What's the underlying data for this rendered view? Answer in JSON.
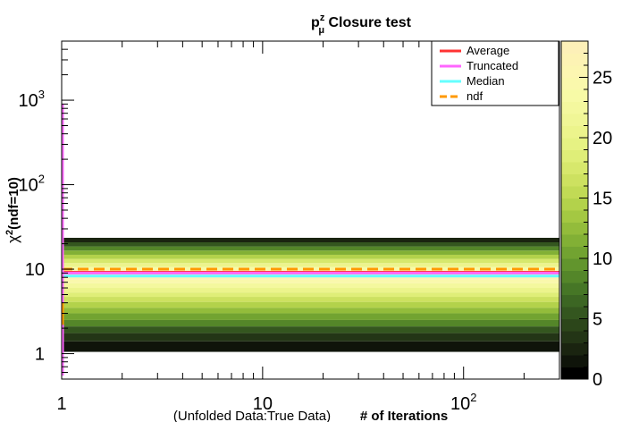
{
  "chart_data": {
    "type": "heatmap",
    "title": "p",
    "title_superscript": "z",
    "title_subscript": "μ",
    "title_rest": " Closure test",
    "xlabel_prefix": "(Unfolded Data:True Data)",
    "xlabel": "# of Iterations",
    "ylabel_symbol": "χ",
    "ylabel_superscript": "2",
    "ylabel_rest": "(ndf=10)",
    "x_scale": "log",
    "y_scale": "log",
    "xlim": [
      1,
      300
    ],
    "ylim": [
      0.5,
      5000
    ],
    "x_ticks": [
      {
        "value": 1,
        "label": "1"
      },
      {
        "value": 10,
        "label": "10"
      },
      {
        "value": 100,
        "label": "10",
        "sup": "2"
      }
    ],
    "y_ticks": [
      {
        "value": 1,
        "label": "1"
      },
      {
        "value": 10,
        "label": "10"
      },
      {
        "value": 100,
        "label": "10",
        "sup": "2"
      },
      {
        "value": 1000,
        "label": "10",
        "sup": "3"
      }
    ],
    "colorbar": {
      "range": [
        0,
        28
      ],
      "ticks": [
        "0",
        "5",
        "10",
        "15",
        "20",
        "25"
      ],
      "tick_values": [
        0,
        5,
        10,
        15,
        20,
        25
      ],
      "palette": [
        "#000000",
        "#0f140a",
        "#1a2410",
        "#233516",
        "#2c461a",
        "#34561f",
        "#3c6623",
        "#467626",
        "#548629",
        "#62952d",
        "#72a331",
        "#82b035",
        "#93bc3b",
        "#a4c842",
        "#b3d24b",
        "#c1da55",
        "#cde160",
        "#d7e86c",
        "#dfee78",
        "#e6f283",
        "#ecf48c",
        "#f0f696",
        "#f4f89e",
        "#f7faa6",
        "#faf8ac",
        "#fcf6b1",
        "#fdf3b4",
        "#fdf0b8"
      ]
    },
    "heatmap_rows": [
      {
        "y0": 1.05,
        "y1": 1.4,
        "value": 1
      },
      {
        "y0": 1.4,
        "y1": 1.75,
        "value": 3
      },
      {
        "y0": 1.75,
        "y1": 2.1,
        "value": 5
      },
      {
        "y0": 2.1,
        "y1": 2.5,
        "value": 8
      },
      {
        "y0": 2.5,
        "y1": 3.0,
        "value": 10
      },
      {
        "y0": 3.0,
        "y1": 3.5,
        "value": 12
      },
      {
        "y0": 3.5,
        "y1": 4.1,
        "value": 14
      },
      {
        "y0": 4.1,
        "y1": 4.7,
        "value": 16
      },
      {
        "y0": 4.7,
        "y1": 5.3,
        "value": 18
      },
      {
        "y0": 5.3,
        "y1": 6.0,
        "value": 20
      },
      {
        "y0": 6.0,
        "y1": 6.8,
        "value": 22
      },
      {
        "y0": 6.8,
        "y1": 7.6,
        "value": 24
      },
      {
        "y0": 7.6,
        "y1": 8.6,
        "value": 26
      },
      {
        "y0": 8.6,
        "y1": 9.6,
        "value": 25
      },
      {
        "y0": 9.6,
        "y1": 10.6,
        "value": 23
      },
      {
        "y0": 10.6,
        "y1": 11.8,
        "value": 20
      },
      {
        "y0": 11.8,
        "y1": 13.2,
        "value": 17
      },
      {
        "y0": 13.2,
        "y1": 14.8,
        "value": 14
      },
      {
        "y0": 14.8,
        "y1": 16.6,
        "value": 11
      },
      {
        "y0": 16.6,
        "y1": 18.6,
        "value": 8
      },
      {
        "y0": 18.6,
        "y1": 20.8,
        "value": 5
      },
      {
        "y0": 20.8,
        "y1": 23.5,
        "value": 2
      }
    ],
    "series": [
      {
        "name": "Average",
        "color": "#ff3333",
        "style": "solid",
        "y": 9.2
      },
      {
        "name": "Truncated",
        "color": "#ff66ff",
        "style": "solid",
        "y": 9.0
      },
      {
        "name": "Median",
        "color": "#66ffff",
        "style": "solid",
        "y": 8.3
      },
      {
        "name": "ndf",
        "color": "#ff9900",
        "style": "dashed",
        "y": 10
      }
    ],
    "truncated_spike": {
      "x": 1,
      "y_min": 0.55,
      "y_max": 900
    },
    "legend_position": "top-right",
    "grid": false
  }
}
